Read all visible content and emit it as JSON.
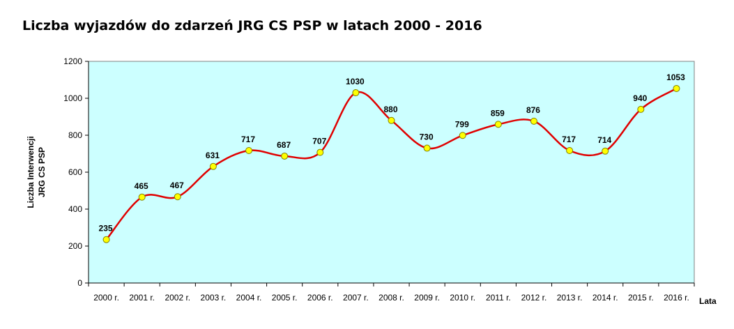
{
  "chart_data": {
    "type": "line",
    "title": "Liczba wyjazdów do zdarzeń JRG CS PSP w latach 2000 - 2016",
    "xlabel": "Lata",
    "ylabel": [
      "Liczba Interwencji",
      "JRG CS PSP"
    ],
    "categories": [
      "2000 r.",
      "2001 r.",
      "2002 r.",
      "2003 r.",
      "2004 r.",
      "2005 r.",
      "2006 r.",
      "2007 r.",
      "2008 r.",
      "2009 r.",
      "2010 r.",
      "2011 r.",
      "2012 r.",
      "2013 r.",
      "2014 r.",
      "2015 r.",
      "2016 r."
    ],
    "values": [
      235,
      465,
      467,
      631,
      717,
      687,
      707,
      1030,
      880,
      730,
      799,
      859,
      876,
      717,
      714,
      940,
      1053
    ],
    "ylim": [
      0,
      1200
    ],
    "yticks": [
      0,
      200,
      400,
      600,
      800,
      1000,
      1200
    ],
    "grid": false,
    "smooth": true,
    "colors": {
      "plot_background": "#ccffff",
      "line": "#e00000",
      "marker_fill": "#ffff00",
      "marker_stroke": "#808000",
      "axis": "#000000"
    }
  }
}
